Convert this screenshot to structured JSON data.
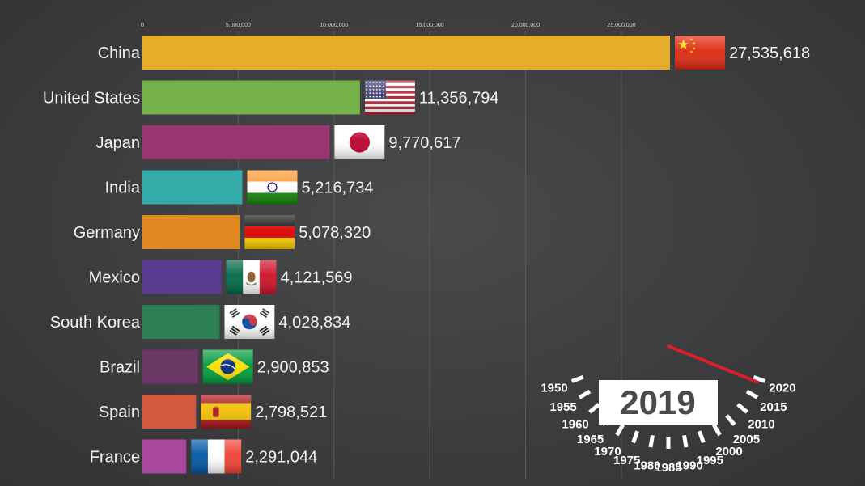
{
  "chart_data": {
    "type": "bar",
    "orientation": "horizontal",
    "x_ticks": [
      0,
      5000000,
      10000000,
      15000000,
      20000000,
      25000000
    ],
    "x_tick_labels": [
      "0",
      "5,000,000",
      "10,000,000",
      "15,000,000",
      "20,000,000",
      "25,000,000"
    ],
    "xlim": [
      0,
      28500000
    ],
    "grid": "vertical",
    "categories": [
      "China",
      "United States",
      "Japan",
      "India",
      "Germany",
      "Mexico",
      "South Korea",
      "Brazil",
      "Spain",
      "France"
    ],
    "values": [
      27535618,
      11356794,
      9770617,
      5216734,
      5078320,
      4121569,
      4028834,
      2900853,
      2798521,
      2291044
    ],
    "value_labels": [
      "27,535,618",
      "11,356,794",
      "9,770,617",
      "5,216,734",
      "5,078,320",
      "4,121,569",
      "4,028,834",
      "2,900,853",
      "2,798,521",
      "2,291,044"
    ],
    "bar_colors": [
      "#e6ad2a",
      "#74b249",
      "#97366f",
      "#33aba8",
      "#e08922",
      "#5a3b8f",
      "#2e7f55",
      "#6b3865",
      "#d2583e",
      "#a8489a"
    ],
    "flags": [
      "flag-china",
      "flag-usa",
      "flag-japan",
      "flag-india",
      "flag-germany",
      "flag-mexico",
      "flag-south-korea",
      "flag-brazil",
      "flag-spain",
      "flag-france"
    ]
  },
  "year_dial": {
    "years": [
      1950,
      1955,
      1960,
      1965,
      1970,
      1975,
      1980,
      1985,
      1990,
      1995,
      2000,
      2005,
      2010,
      2015,
      2020
    ],
    "year_labels": [
      "1950",
      "1955",
      "1960",
      "1965",
      "1970",
      "1975",
      "1980",
      "1985",
      "1990",
      "1995",
      "2000",
      "2005",
      "2010",
      "2015",
      "2020"
    ],
    "current_year": 2019,
    "current_year_label": "2019",
    "needle_color": "#d9202a"
  }
}
